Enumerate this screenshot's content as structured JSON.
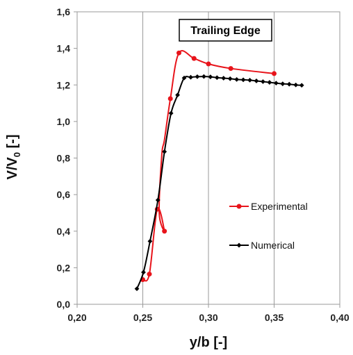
{
  "chart_data": {
    "type": "line",
    "title": "Trailing Edge",
    "xlabel": "y/b [-]",
    "ylabel_main": "V/V",
    "ylabel_sub": "0",
    "ylabel_tail": " [-]",
    "xlim": [
      0.2,
      0.4
    ],
    "ylim": [
      0.0,
      1.6
    ],
    "xticks": [
      "0,20",
      "0,25",
      "0,30",
      "0,35",
      "0,40"
    ],
    "yticks": [
      "0,0",
      "0,2",
      "0,4",
      "0,6",
      "0,8",
      "1,0",
      "1,2",
      "1,4",
      "1,6"
    ],
    "grid": "vertical major lines",
    "legend_placement": "right-middle",
    "series": [
      {
        "name": "Experimental",
        "color": "#e8141b",
        "marker": "circle",
        "x": [
          0.25,
          0.255,
          0.261,
          0.2665,
          0.2625,
          0.2645,
          0.2665,
          0.271,
          0.2775,
          0.289,
          0.3,
          0.317,
          0.35
        ],
        "y": [
          0.135,
          0.165,
          0.52,
          0.4,
          0.5,
          0.82,
          0.9,
          1.125,
          1.375,
          1.345,
          1.315,
          1.29,
          1.262
        ],
        "marked": [
          true,
          true,
          true,
          true,
          false,
          false,
          false,
          true,
          true,
          true,
          true,
          true,
          true
        ]
      },
      {
        "name": "Numerical",
        "color": "#000000",
        "marker": "diamond",
        "x": [
          0.2455,
          0.2505,
          0.2555,
          0.2615,
          0.2665,
          0.2715,
          0.2765,
          0.2815,
          0.2865,
          0.2915,
          0.2965,
          0.3015,
          0.3065,
          0.3115,
          0.3165,
          0.3215,
          0.3265,
          0.3315,
          0.3365,
          0.3415,
          0.3465,
          0.3515,
          0.3565,
          0.3615,
          0.3665,
          0.371
        ],
        "y": [
          0.085,
          0.175,
          0.345,
          0.57,
          0.835,
          1.045,
          1.145,
          1.238,
          1.242,
          1.245,
          1.246,
          1.244,
          1.24,
          1.237,
          1.234,
          1.23,
          1.228,
          1.226,
          1.222,
          1.218,
          1.214,
          1.21,
          1.206,
          1.204,
          1.2,
          1.198
        ]
      }
    ]
  }
}
